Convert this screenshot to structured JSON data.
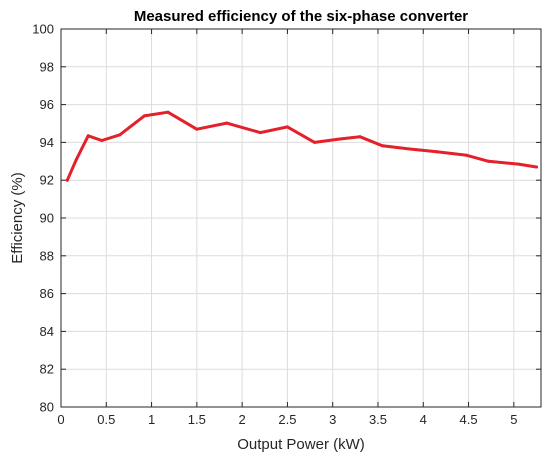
{
  "chart_data": {
    "type": "line",
    "title": "Measured efficiency of the six-phase converter",
    "xlabel": "Output Power (kW)",
    "ylabel": "Efficiency (%)",
    "xlim": [
      0,
      5.3
    ],
    "ylim": [
      80,
      100
    ],
    "xticks": [
      0,
      0.5,
      1,
      1.5,
      2,
      2.5,
      3,
      3.5,
      4,
      4.5,
      5
    ],
    "xtick_labels": [
      "0",
      "0.5",
      "1",
      "1.5",
      "2",
      "2.5",
      "3",
      "3.5",
      "4",
      "4.5",
      "5"
    ],
    "yticks": [
      80,
      82,
      84,
      86,
      88,
      90,
      92,
      94,
      96,
      98,
      100
    ],
    "ytick_labels": [
      "80",
      "82",
      "84",
      "86",
      "88",
      "90",
      "92",
      "94",
      "96",
      "98",
      "100"
    ],
    "grid": true,
    "series": [
      {
        "color": "#e4202a",
        "x": [
          0.07,
          0.17,
          0.3,
          0.45,
          0.65,
          0.92,
          1.18,
          1.5,
          1.83,
          2.2,
          2.5,
          2.8,
          3.08,
          3.3,
          3.55,
          3.85,
          4.15,
          4.48,
          4.72,
          5.05,
          5.25
        ],
        "y": [
          92.0,
          93.1,
          94.35,
          94.1,
          94.4,
          95.4,
          95.6,
          94.7,
          95.02,
          94.52,
          94.82,
          94.0,
          94.18,
          94.3,
          93.82,
          93.65,
          93.5,
          93.32,
          93.0,
          92.85,
          92.7
        ]
      }
    ]
  }
}
